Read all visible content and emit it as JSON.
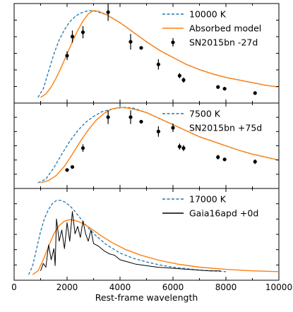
{
  "colors": {
    "blackbody": "#1f77b4",
    "model": "#ff7f0e",
    "data": "#000000",
    "axes": "#000000"
  },
  "chart_data": [
    {
      "type": "line",
      "panel": "top",
      "xlim": [
        0,
        10000
      ],
      "series": [
        {
          "name": "10000 K",
          "style": "dashed",
          "color": "#1f77b4",
          "x": [
            900,
            1100,
            1300,
            1500,
            1700,
            1900,
            2100,
            2300,
            2500,
            2700,
            2900,
            3100,
            3300,
            3500,
            4000,
            4500,
            5000,
            5500,
            6000,
            6500,
            7000,
            7500,
            8000,
            8500,
            9000,
            9500,
            10000
          ],
          "y": [
            0.0,
            0.1,
            0.3,
            0.5,
            0.66,
            0.78,
            0.87,
            0.93,
            0.97,
            0.99,
            1.0,
            0.99,
            0.97,
            0.95,
            0.86,
            0.75,
            0.64,
            0.54,
            0.46,
            0.38,
            0.32,
            0.27,
            0.23,
            0.2,
            0.17,
            0.14,
            0.12
          ]
        },
        {
          "name": "Absorbed model",
          "style": "solid",
          "color": "#ff7f0e",
          "x": [
            1000,
            1200,
            1400,
            1600,
            1800,
            2000,
            2200,
            2400,
            2600,
            2800,
            3000,
            3200,
            3500,
            4000,
            4500,
            5000,
            5500,
            6000,
            6500,
            7000,
            7500,
            8000,
            8500,
            9000,
            9500,
            10000
          ],
          "y": [
            0.0,
            0.04,
            0.12,
            0.23,
            0.36,
            0.5,
            0.64,
            0.77,
            0.88,
            0.96,
            1.0,
            0.99,
            0.95,
            0.86,
            0.75,
            0.64,
            0.54,
            0.46,
            0.38,
            0.32,
            0.27,
            0.23,
            0.2,
            0.17,
            0.14,
            0.12
          ]
        },
        {
          "name": "SN2015bn -27d",
          "style": "errorbar",
          "color": "#000000",
          "x": [
            2000,
            2200,
            2600,
            3550,
            4400,
            4800,
            5450,
            6250,
            6400,
            7700,
            7950,
            9100
          ],
          "y": [
            0.48,
            0.7,
            0.75,
            0.98,
            0.64,
            0.57,
            0.38,
            0.25,
            0.2,
            0.12,
            0.1,
            0.05
          ],
          "yerr": [
            0.05,
            0.07,
            0.07,
            0.1,
            0.09,
            0.02,
            0.06,
            0.03,
            0.03,
            0.02,
            0.02,
            0.02
          ]
        }
      ]
    },
    {
      "type": "line",
      "panel": "middle",
      "xlim": [
        0,
        10000
      ],
      "series": [
        {
          "name": "7500 K",
          "style": "dashed",
          "color": "#1f77b4",
          "x": [
            900,
            1200,
            1500,
            1800,
            2100,
            2400,
            2700,
            3000,
            3300,
            3600,
            3900,
            4200,
            4500,
            5000,
            5500,
            6000,
            6500,
            7000,
            7500,
            8000,
            8500,
            9000,
            9500,
            10000
          ],
          "y": [
            0.0,
            0.05,
            0.2,
            0.38,
            0.55,
            0.69,
            0.8,
            0.88,
            0.94,
            0.97,
            0.99,
            1.0,
            0.99,
            0.93,
            0.85,
            0.77,
            0.69,
            0.61,
            0.55,
            0.49,
            0.43,
            0.38,
            0.34,
            0.3
          ]
        },
        {
          "name": "",
          "style": "solid",
          "color": "#ff7f0e",
          "x": [
            1000,
            1300,
            1600,
            1900,
            2200,
            2500,
            2800,
            3100,
            3400,
            3700,
            4000,
            4300,
            4600,
            5000,
            5500,
            6000,
            6500,
            7000,
            7500,
            8000,
            8500,
            9000,
            9500,
            10000
          ],
          "y": [
            0.0,
            0.03,
            0.1,
            0.22,
            0.38,
            0.55,
            0.7,
            0.83,
            0.92,
            0.98,
            1.0,
            0.99,
            0.97,
            0.93,
            0.85,
            0.77,
            0.69,
            0.61,
            0.55,
            0.49,
            0.43,
            0.38,
            0.34,
            0.3
          ]
        },
        {
          "name": "SN2015bn +75d",
          "style": "errorbar",
          "color": "#000000",
          "x": [
            2000,
            2200,
            2600,
            3550,
            4400,
            4800,
            5450,
            6250,
            6400,
            7700,
            7950,
            9100
          ],
          "y": [
            0.17,
            0.21,
            0.46,
            0.87,
            0.87,
            0.81,
            0.68,
            0.48,
            0.46,
            0.34,
            0.31,
            0.28
          ],
          "yerr": [
            0.02,
            0.02,
            0.05,
            0.09,
            0.09,
            0.02,
            0.07,
            0.04,
            0.04,
            0.03,
            0.02,
            0.03
          ]
        }
      ]
    },
    {
      "type": "line",
      "panel": "bottom",
      "xlim": [
        0,
        10000
      ],
      "xlabel": "Rest-frame wavelength",
      "xticks": [
        0,
        2000,
        4000,
        6000,
        8000,
        10000
      ],
      "series": [
        {
          "name": "17000 K",
          "style": "dashed",
          "color": "#1f77b4",
          "x": [
            550,
            700,
            850,
            1000,
            1150,
            1300,
            1450,
            1600,
            1750,
            1900,
            2100,
            2300,
            2500,
            2800,
            3100,
            3500,
            4000,
            4500,
            5000,
            5500,
            6000,
            6500,
            7000,
            7500,
            8000
          ],
          "y": [
            0.0,
            0.12,
            0.35,
            0.58,
            0.76,
            0.88,
            0.96,
            1.0,
            1.0,
            0.98,
            0.93,
            0.85,
            0.76,
            0.63,
            0.52,
            0.4,
            0.29,
            0.22,
            0.17,
            0.13,
            0.1,
            0.08,
            0.06,
            0.05,
            0.04
          ]
        },
        {
          "name": "",
          "style": "solid",
          "color": "#ff7f0e",
          "x": [
            700,
            900,
            1100,
            1300,
            1500,
            1700,
            1900,
            2100,
            2300,
            2600,
            2900,
            3300,
            3700,
            4200,
            4800,
            5500,
            6200,
            7000,
            8000,
            9000,
            10000
          ],
          "y": [
            0.0,
            0.05,
            0.2,
            0.38,
            0.55,
            0.66,
            0.72,
            0.74,
            0.73,
            0.69,
            0.62,
            0.52,
            0.43,
            0.34,
            0.26,
            0.19,
            0.14,
            0.1,
            0.07,
            0.05,
            0.04
          ]
        },
        {
          "name": "Gaia16apd +0d",
          "style": "solid",
          "color": "#000000",
          "x": [
            1000,
            1100,
            1200,
            1300,
            1400,
            1500,
            1550,
            1600,
            1700,
            1800,
            1900,
            2000,
            2100,
            2200,
            2300,
            2400,
            2500,
            2600,
            2700,
            2800,
            2900,
            3000,
            3200,
            3400,
            3600,
            3800,
            4000,
            4300,
            4600,
            5000,
            5400,
            5800,
            6200,
            6600,
            7000,
            7400,
            7800
          ],
          "y": [
            0.05,
            0.15,
            0.1,
            0.4,
            0.2,
            0.35,
            0.12,
            0.75,
            0.45,
            0.6,
            0.35,
            0.7,
            0.45,
            0.85,
            0.55,
            0.65,
            0.5,
            0.72,
            0.55,
            0.45,
            0.6,
            0.42,
            0.38,
            0.32,
            0.28,
            0.26,
            0.2,
            0.17,
            0.14,
            0.12,
            0.1,
            0.09,
            0.08,
            0.07,
            0.06,
            0.05,
            0.05
          ]
        }
      ]
    }
  ]
}
